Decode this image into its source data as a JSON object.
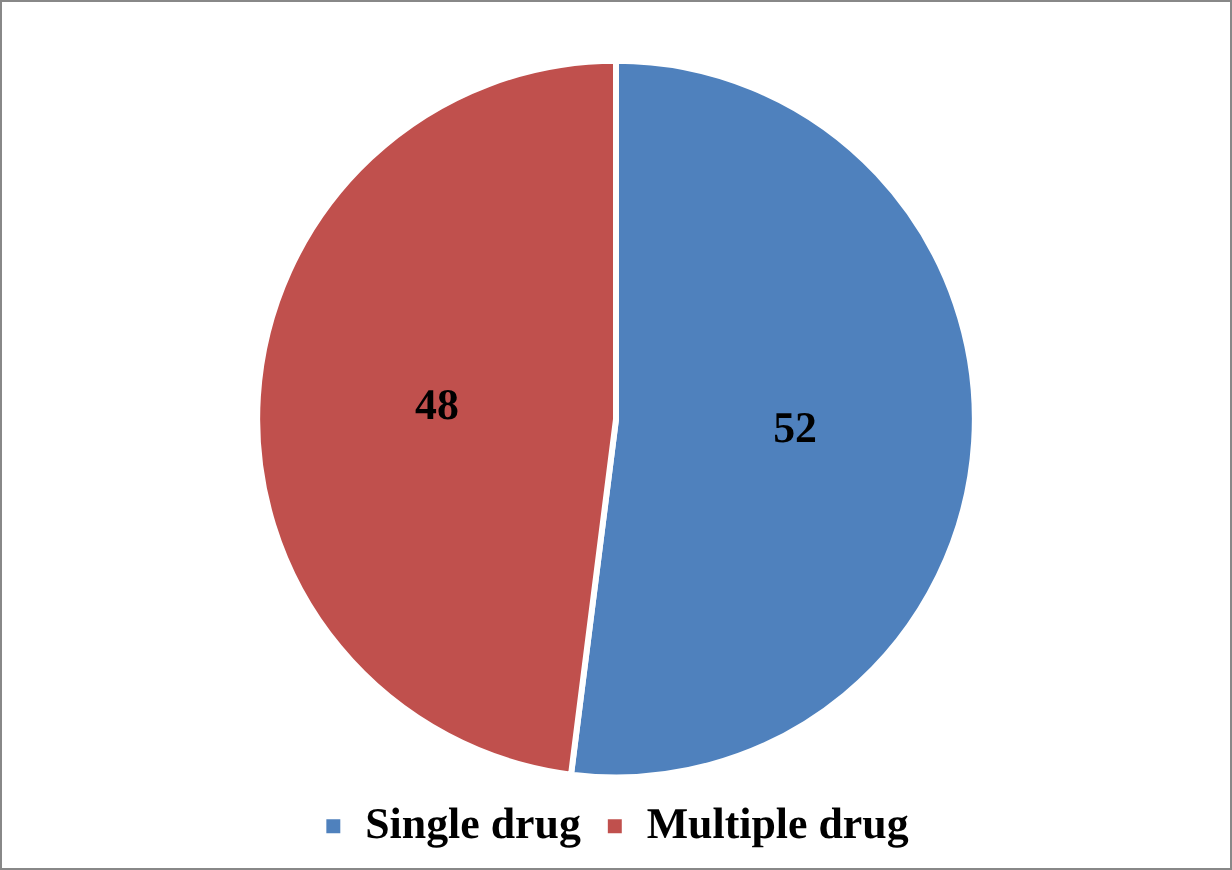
{
  "chart_data": {
    "type": "pie",
    "categories": [
      "Single drug",
      "Multiple drug"
    ],
    "values": [
      52,
      48
    ],
    "colors": [
      "#4f81bd",
      "#c0504d"
    ],
    "data_labels": true,
    "legend": "bottom"
  }
}
